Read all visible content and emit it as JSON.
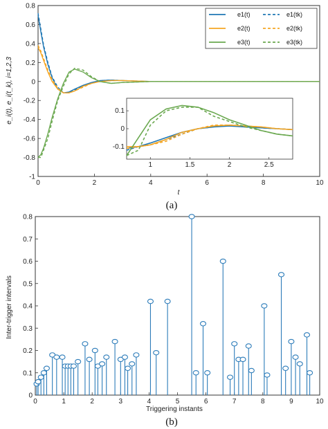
{
  "colors": {
    "e1": "#1f77b4",
    "e2": "#f5a623",
    "e3": "#6aa84f",
    "axis": "#333333",
    "stem": "#2b7bb9"
  },
  "figure_a": {
    "caption": "(a)",
    "xlabel": "t",
    "ylabel": "e_i(t), e_i(t_k), i=1,2,3",
    "legend": [
      "e1(t)",
      "e1(tk)",
      "e2(t)",
      "e2(tk)",
      "e3(t)",
      "e3(tk)"
    ]
  },
  "figure_b": {
    "caption": "(b)",
    "xlabel": "Triggering instants",
    "ylabel": "Inter-trigger intervals"
  },
  "chart_data": [
    {
      "type": "line",
      "xlabel": "t",
      "ylabel": "e_i(t), e_i(t_k), i=1,2,3",
      "xlim": [
        0,
        10
      ],
      "ylim": [
        -1,
        0.8
      ],
      "xticks": [
        0,
        2,
        4,
        6,
        8,
        10
      ],
      "yticks": [
        -1,
        -0.8,
        -0.6,
        -0.4,
        -0.2,
        0,
        0.2,
        0.4,
        0.6,
        0.8
      ],
      "grid": false,
      "legend_position": "top-right",
      "series": [
        {
          "name": "e1(t)",
          "style": "solid",
          "x": [
            0,
            0.1,
            0.2,
            0.35,
            0.5,
            0.7,
            0.9,
            1.1,
            1.3,
            1.6,
            1.9,
            2.2,
            2.6,
            3.0,
            4.0,
            5.0,
            7.0,
            10.0
          ],
          "y": [
            0.7,
            0.52,
            0.36,
            0.18,
            0.04,
            -0.08,
            -0.12,
            -0.11,
            -0.08,
            -0.04,
            -0.01,
            0.01,
            0.015,
            0.01,
            0.0,
            0.0,
            0.0,
            0.0
          ]
        },
        {
          "name": "e1(tk)",
          "style": "dashed",
          "x": [
            0,
            0.1,
            0.2,
            0.35,
            0.5,
            0.7,
            0.9,
            1.1,
            1.3,
            1.6,
            1.9,
            2.2,
            2.6,
            3.0,
            4.0,
            5.0,
            7.0,
            10.0
          ],
          "y": [
            0.72,
            0.55,
            0.38,
            0.2,
            0.05,
            -0.06,
            -0.12,
            -0.12,
            -0.09,
            -0.05,
            -0.02,
            0.01,
            0.015,
            0.01,
            0.0,
            0.0,
            0.0,
            0.0
          ]
        },
        {
          "name": "e2(t)",
          "style": "solid",
          "x": [
            0,
            0.1,
            0.2,
            0.35,
            0.5,
            0.7,
            0.9,
            1.1,
            1.3,
            1.6,
            1.9,
            2.2,
            2.6,
            3.0,
            4.0,
            5.0,
            7.0,
            10.0
          ],
          "y": [
            0.36,
            0.3,
            0.22,
            0.1,
            0.0,
            -0.08,
            -0.12,
            -0.12,
            -0.1,
            -0.05,
            -0.02,
            0.0,
            0.01,
            0.01,
            0.0,
            0.0,
            0.0,
            0.0
          ]
        },
        {
          "name": "e2(tk)",
          "style": "dashed",
          "x": [
            0,
            0.1,
            0.2,
            0.35,
            0.5,
            0.7,
            0.9,
            1.1,
            1.3,
            1.6,
            1.9,
            2.2,
            2.6,
            3.0,
            4.0,
            5.0,
            7.0,
            10.0
          ],
          "y": [
            0.38,
            0.32,
            0.24,
            0.12,
            0.02,
            -0.07,
            -0.12,
            -0.12,
            -0.1,
            -0.06,
            -0.02,
            0.0,
            0.01,
            0.01,
            0.0,
            0.0,
            0.0,
            0.0
          ]
        },
        {
          "name": "e3(t)",
          "style": "solid",
          "x": [
            0,
            0.1,
            0.2,
            0.35,
            0.5,
            0.7,
            0.9,
            1.1,
            1.3,
            1.6,
            1.9,
            2.2,
            2.6,
            3.0,
            4.0,
            5.0,
            7.0,
            10.0
          ],
          "y": [
            -0.8,
            -0.77,
            -0.7,
            -0.55,
            -0.38,
            -0.18,
            -0.02,
            0.1,
            0.13,
            0.1,
            0.04,
            0.0,
            -0.02,
            -0.01,
            0.0,
            0.0,
            0.0,
            0.0
          ]
        },
        {
          "name": "e3(tk)",
          "style": "dashed",
          "x": [
            0,
            0.1,
            0.2,
            0.35,
            0.5,
            0.7,
            0.9,
            1.1,
            1.3,
            1.6,
            1.9,
            2.2,
            2.6,
            3.0,
            4.0,
            5.0,
            7.0,
            10.0
          ],
          "y": [
            -0.8,
            -0.8,
            -0.72,
            -0.6,
            -0.42,
            -0.2,
            -0.05,
            0.08,
            0.14,
            0.12,
            0.05,
            0.0,
            -0.02,
            -0.01,
            0.0,
            0.0,
            0.0,
            0.0
          ]
        }
      ],
      "inset": {
        "xlim": [
          0.7,
          2.8
        ],
        "ylim": [
          -0.17,
          0.17
        ],
        "xticks": [
          1,
          1.5,
          2,
          2.5
        ],
        "yticks": [
          -0.1,
          0,
          0.1
        ],
        "series": [
          {
            "name": "e1(t)",
            "style": "solid",
            "x": [
              0.7,
              0.85,
              1.0,
              1.2,
              1.4,
              1.6,
              1.8,
              2.0,
              2.2,
              2.4,
              2.6,
              2.8
            ],
            "y": [
              -0.11,
              -0.1,
              -0.08,
              -0.05,
              -0.02,
              0.0,
              0.01,
              0.015,
              0.01,
              0.005,
              0.0,
              -0.005
            ]
          },
          {
            "name": "e1(tk)",
            "style": "dashed",
            "x": [
              0.7,
              0.85,
              1.0,
              1.2,
              1.4,
              1.6,
              1.8,
              2.0,
              2.2,
              2.4,
              2.6,
              2.8
            ],
            "y": [
              -0.12,
              -0.1,
              -0.09,
              -0.06,
              -0.03,
              0.0,
              0.01,
              0.02,
              0.01,
              0.005,
              0.0,
              -0.005
            ]
          },
          {
            "name": "e2(t)",
            "style": "solid",
            "x": [
              0.7,
              0.85,
              1.0,
              1.2,
              1.4,
              1.6,
              1.8,
              2.0,
              2.2,
              2.4,
              2.6,
              2.8
            ],
            "y": [
              -0.1,
              -0.1,
              -0.09,
              -0.06,
              -0.02,
              0.0,
              0.015,
              0.02,
              0.015,
              0.01,
              0.0,
              -0.005
            ]
          },
          {
            "name": "e2(tk)",
            "style": "dashed",
            "x": [
              0.7,
              0.85,
              1.0,
              1.2,
              1.4,
              1.6,
              1.8,
              2.0,
              2.2,
              2.4,
              2.6,
              2.8
            ],
            "y": [
              -0.11,
              -0.1,
              -0.09,
              -0.07,
              -0.03,
              0.0,
              0.02,
              0.02,
              0.015,
              0.01,
              0.0,
              -0.005
            ]
          },
          {
            "name": "e3(t)",
            "style": "solid",
            "x": [
              0.7,
              0.85,
              1.0,
              1.2,
              1.4,
              1.6,
              1.8,
              2.0,
              2.2,
              2.4,
              2.6,
              2.8
            ],
            "y": [
              -0.15,
              -0.05,
              0.05,
              0.11,
              0.13,
              0.12,
              0.09,
              0.05,
              0.02,
              -0.01,
              -0.03,
              -0.04
            ]
          },
          {
            "name": "e3(tk)",
            "style": "dashed",
            "x": [
              0.7,
              0.85,
              1.0,
              1.2,
              1.4,
              1.6,
              1.8,
              2.0,
              2.2,
              2.4,
              2.6,
              2.8
            ],
            "y": [
              -0.15,
              -0.12,
              0.02,
              0.1,
              0.12,
              0.12,
              0.07,
              0.04,
              0.01,
              -0.01,
              -0.03,
              -0.04
            ]
          }
        ]
      }
    },
    {
      "type": "stem",
      "xlabel": "Triggering instants",
      "ylabel": "Inter-trigger intervals",
      "xlim": [
        0,
        10
      ],
      "ylim": [
        0,
        0.8
      ],
      "xticks": [
        0,
        1,
        2,
        3,
        4,
        5,
        6,
        7,
        8,
        9,
        10
      ],
      "yticks": [
        0,
        0.1,
        0.2,
        0.3,
        0.4,
        0.5,
        0.6,
        0.7,
        0.8
      ],
      "grid": false,
      "x": [
        0.05,
        0.1,
        0.2,
        0.3,
        0.4,
        0.6,
        0.75,
        0.95,
        1.05,
        1.15,
        1.25,
        1.35,
        1.5,
        1.75,
        1.9,
        2.1,
        2.2,
        2.35,
        2.5,
        2.8,
        3.0,
        3.15,
        3.25,
        3.4,
        3.55,
        4.05,
        4.25,
        4.65,
        5.5,
        5.65,
        5.9,
        6.05,
        6.6,
        6.85,
        7.0,
        7.15,
        7.3,
        7.5,
        7.6,
        8.05,
        8.15,
        8.65,
        8.8,
        9.0,
        9.15,
        9.3,
        9.55,
        9.65
      ],
      "y": [
        0.05,
        0.06,
        0.08,
        0.1,
        0.12,
        0.18,
        0.17,
        0.17,
        0.13,
        0.13,
        0.13,
        0.13,
        0.15,
        0.23,
        0.16,
        0.2,
        0.13,
        0.14,
        0.17,
        0.24,
        0.16,
        0.17,
        0.12,
        0.14,
        0.18,
        0.42,
        0.19,
        0.42,
        0.8,
        0.1,
        0.32,
        0.1,
        0.6,
        0.08,
        0.23,
        0.16,
        0.16,
        0.22,
        0.11,
        0.4,
        0.09,
        0.54,
        0.12,
        0.24,
        0.17,
        0.14,
        0.27,
        0.1
      ]
    }
  ]
}
